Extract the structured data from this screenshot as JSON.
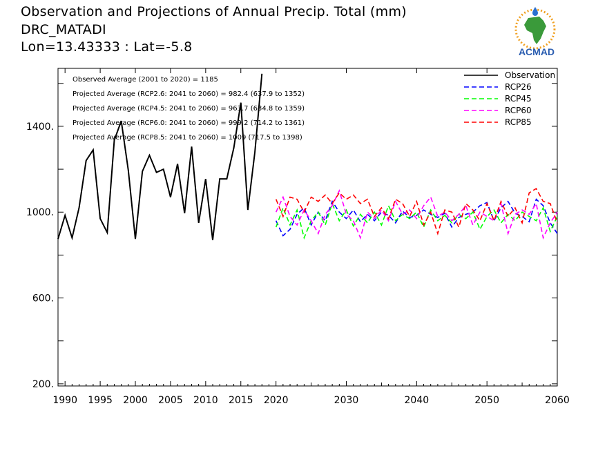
{
  "header": {
    "title": "Observation and Projections of Annual Precip. Total (mm)",
    "station": "DRC_MATADI",
    "coords": "Lon=13.43333 : Lat=-5.8"
  },
  "logo": {
    "text": "ACMAD",
    "icon": "africa-map-logo"
  },
  "chart_data": {
    "type": "line",
    "title": "Observation and Projections of Annual Precip. Total (mm)",
    "xlim": [
      1989,
      2060
    ],
    "ylim": [
      190,
      1670
    ],
    "yticks": [
      200,
      600,
      1000,
      1400
    ],
    "ytick_labels": [
      "200.",
      "600.",
      "1000.",
      "1400."
    ],
    "xticks": [
      1990,
      1995,
      2000,
      2005,
      2010,
      2015,
      2020,
      2030,
      2040,
      2050,
      2060
    ],
    "xtick_labels": [
      "1990",
      "1995",
      "2000",
      "2005",
      "2010",
      "2015",
      "2020",
      "2030",
      "2040",
      "2050",
      "2060"
    ],
    "grid": false,
    "legend_position": "top-right",
    "annotations": [
      "Observed Average (2001 to 2020) = 1185",
      "Projected Average (RCP2.6: 2041 to 2060) = 982.4 (637.9 to 1352)",
      "Projected Average (RCP4.5: 2041 to 2060) = 963.7 (634.8 to 1359)",
      "Projected Average (RCP6.0: 2041 to 2060) = 999.2 (714.2 to 1361)",
      "Projected Average (RCP8.5: 2041 to 2060) = 1009 (717.5 to 1398)"
    ],
    "series": [
      {
        "name": "Observation",
        "color": "#000000",
        "dashed": false,
        "x": [
          1989,
          1990,
          1991,
          1992,
          1993,
          1994,
          1995,
          1996,
          1997,
          1998,
          1999,
          2000,
          2001,
          2002,
          2003,
          2004,
          2005,
          2006,
          2007,
          2008,
          2009,
          2010,
          2011,
          2012,
          2013,
          2014,
          2015,
          2016,
          2017,
          2018,
          2019,
          2020
        ],
        "y": [
          875,
          985,
          880,
          1020,
          1240,
          1290,
          970,
          905,
          1335,
          1425,
          1195,
          875,
          1190,
          1265,
          1185,
          1200,
          1070,
          1225,
          995,
          1305,
          950,
          1155,
          870,
          1155,
          1155,
          1300,
          1510,
          1010,
          1280,
          1645,
          null,
          null
        ]
      },
      {
        "name": "RCP26",
        "color": "#0000ff",
        "dashed": true,
        "x": [
          2020,
          2021,
          2022,
          2023,
          2024,
          2025,
          2026,
          2027,
          2028,
          2029,
          2030,
          2031,
          2032,
          2033,
          2034,
          2035,
          2036,
          2037,
          2038,
          2039,
          2040,
          2041,
          2042,
          2043,
          2044,
          2045,
          2046,
          2047,
          2048,
          2049,
          2050,
          2051,
          2052,
          2053,
          2054,
          2055,
          2056,
          2057,
          2058,
          2059,
          2060
        ],
        "y": [
          960,
          890,
          920,
          990,
          1020,
          940,
          1000,
          960,
          1050,
          1000,
          970,
          1010,
          955,
          990,
          960,
          1000,
          985,
          950,
          1005,
          975,
          985,
          1010,
          990,
          975,
          995,
          930,
          975,
          990,
          1000,
          1030,
          1045,
          960,
          1020,
          1050,
          995,
          980,
          955,
          1060,
          1030,
          950,
          900
        ]
      },
      {
        "name": "RCP45",
        "color": "#00ff00",
        "dashed": true,
        "x": [
          2020,
          2021,
          2022,
          2023,
          2024,
          2025,
          2026,
          2027,
          2028,
          2029,
          2030,
          2031,
          2032,
          2033,
          2034,
          2035,
          2036,
          2037,
          2038,
          2039,
          2040,
          2041,
          2042,
          2043,
          2044,
          2045,
          2046,
          2047,
          2048,
          2049,
          2050,
          2051,
          2052,
          2053,
          2054,
          2055,
          2056,
          2057,
          2058,
          2059,
          2060
        ],
        "y": [
          930,
          1020,
          940,
          1010,
          880,
          960,
          1000,
          940,
          1040,
          960,
          1010,
          935,
          990,
          950,
          1000,
          940,
          1030,
          960,
          990,
          970,
          1000,
          930,
          1010,
          960,
          985,
          950,
          990,
          970,
          1000,
          920,
          980,
          1010,
          950,
          990,
          960,
          1000,
          980,
          960,
          1020,
          910,
          980
        ]
      },
      {
        "name": "RCP60",
        "color": "#ff00ff",
        "dashed": true,
        "x": [
          2020,
          2021,
          2022,
          2023,
          2024,
          2025,
          2026,
          2027,
          2028,
          2029,
          2030,
          2031,
          2032,
          2033,
          2034,
          2035,
          2036,
          2037,
          2038,
          2039,
          2040,
          2041,
          2042,
          2043,
          2044,
          2045,
          2046,
          2047,
          2048,
          2049,
          2050,
          2051,
          2052,
          2053,
          2054,
          2055,
          2056,
          2057,
          2058,
          2059,
          2060
        ],
        "y": [
          1000,
          1070,
          980,
          940,
          1010,
          960,
          900,
          990,
          1030,
          1100,
          990,
          960,
          880,
          1000,
          970,
          1010,
          960,
          1050,
          990,
          1010,
          970,
          1030,
          1070,
          980,
          1000,
          960,
          990,
          1030,
          940,
          1000,
          980,
          960,
          1040,
          900,
          990,
          1010,
          990,
          1040,
          880,
          950,
          1000
        ]
      },
      {
        "name": "RCP85",
        "color": "#ff0000",
        "dashed": true,
        "x": [
          2020,
          2021,
          2022,
          2023,
          2024,
          2025,
          2026,
          2027,
          2028,
          2029,
          2030,
          2031,
          2032,
          2033,
          2034,
          2035,
          2036,
          2037,
          2038,
          2039,
          2040,
          2041,
          2042,
          2043,
          2044,
          2045,
          2046,
          2047,
          2048,
          2049,
          2050,
          2051,
          2052,
          2053,
          2054,
          2055,
          2056,
          2057,
          2058,
          2059,
          2060
        ],
        "y": [
          1060,
          980,
          1070,
          1060,
          1000,
          1070,
          1050,
          1080,
          1040,
          1090,
          1060,
          1080,
          1040,
          1060,
          980,
          1020,
          970,
          1060,
          1040,
          980,
          1050,
          940,
          1000,
          900,
          1010,
          1000,
          930,
          1040,
          1010,
          960,
          1040,
          960,
          1050,
          980,
          1020,
          950,
          1090,
          1110,
          1050,
          1040,
          950
        ]
      }
    ]
  }
}
